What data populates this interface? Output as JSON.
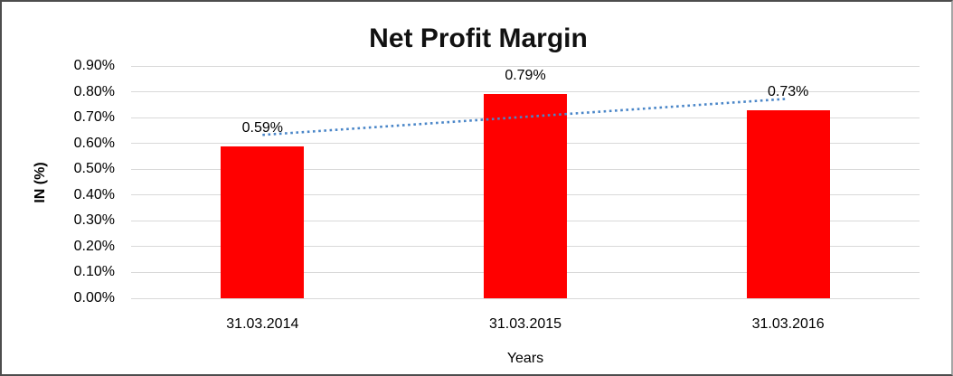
{
  "chart_data": {
    "type": "bar",
    "title": "Net Profit Margin",
    "categories": [
      "31.03.2014",
      "31.03.2015",
      "31.03.2016"
    ],
    "series": [
      {
        "name": "Net Profit Margin",
        "values": [
          0.59,
          0.79,
          0.73
        ]
      }
    ],
    "data_labels": [
      "0.59%",
      "0.79%",
      "0.73%"
    ],
    "xlabel": "Years",
    "ylabel": "IN (%)",
    "ylim": [
      0,
      0.9
    ],
    "ytick_step": 0.1,
    "ytick_labels": [
      "0.00%",
      "0.10%",
      "0.20%",
      "0.30%",
      "0.40%",
      "0.50%",
      "0.60%",
      "0.70%",
      "0.80%",
      "0.90%"
    ],
    "grid": true,
    "legend": "none",
    "bar_color": "#ff0000",
    "gridline_color": "#d9d9d9",
    "trendline": {
      "style": "dotted",
      "color": "#4a86c8",
      "start_value": 0.633,
      "end_value": 0.773
    }
  }
}
